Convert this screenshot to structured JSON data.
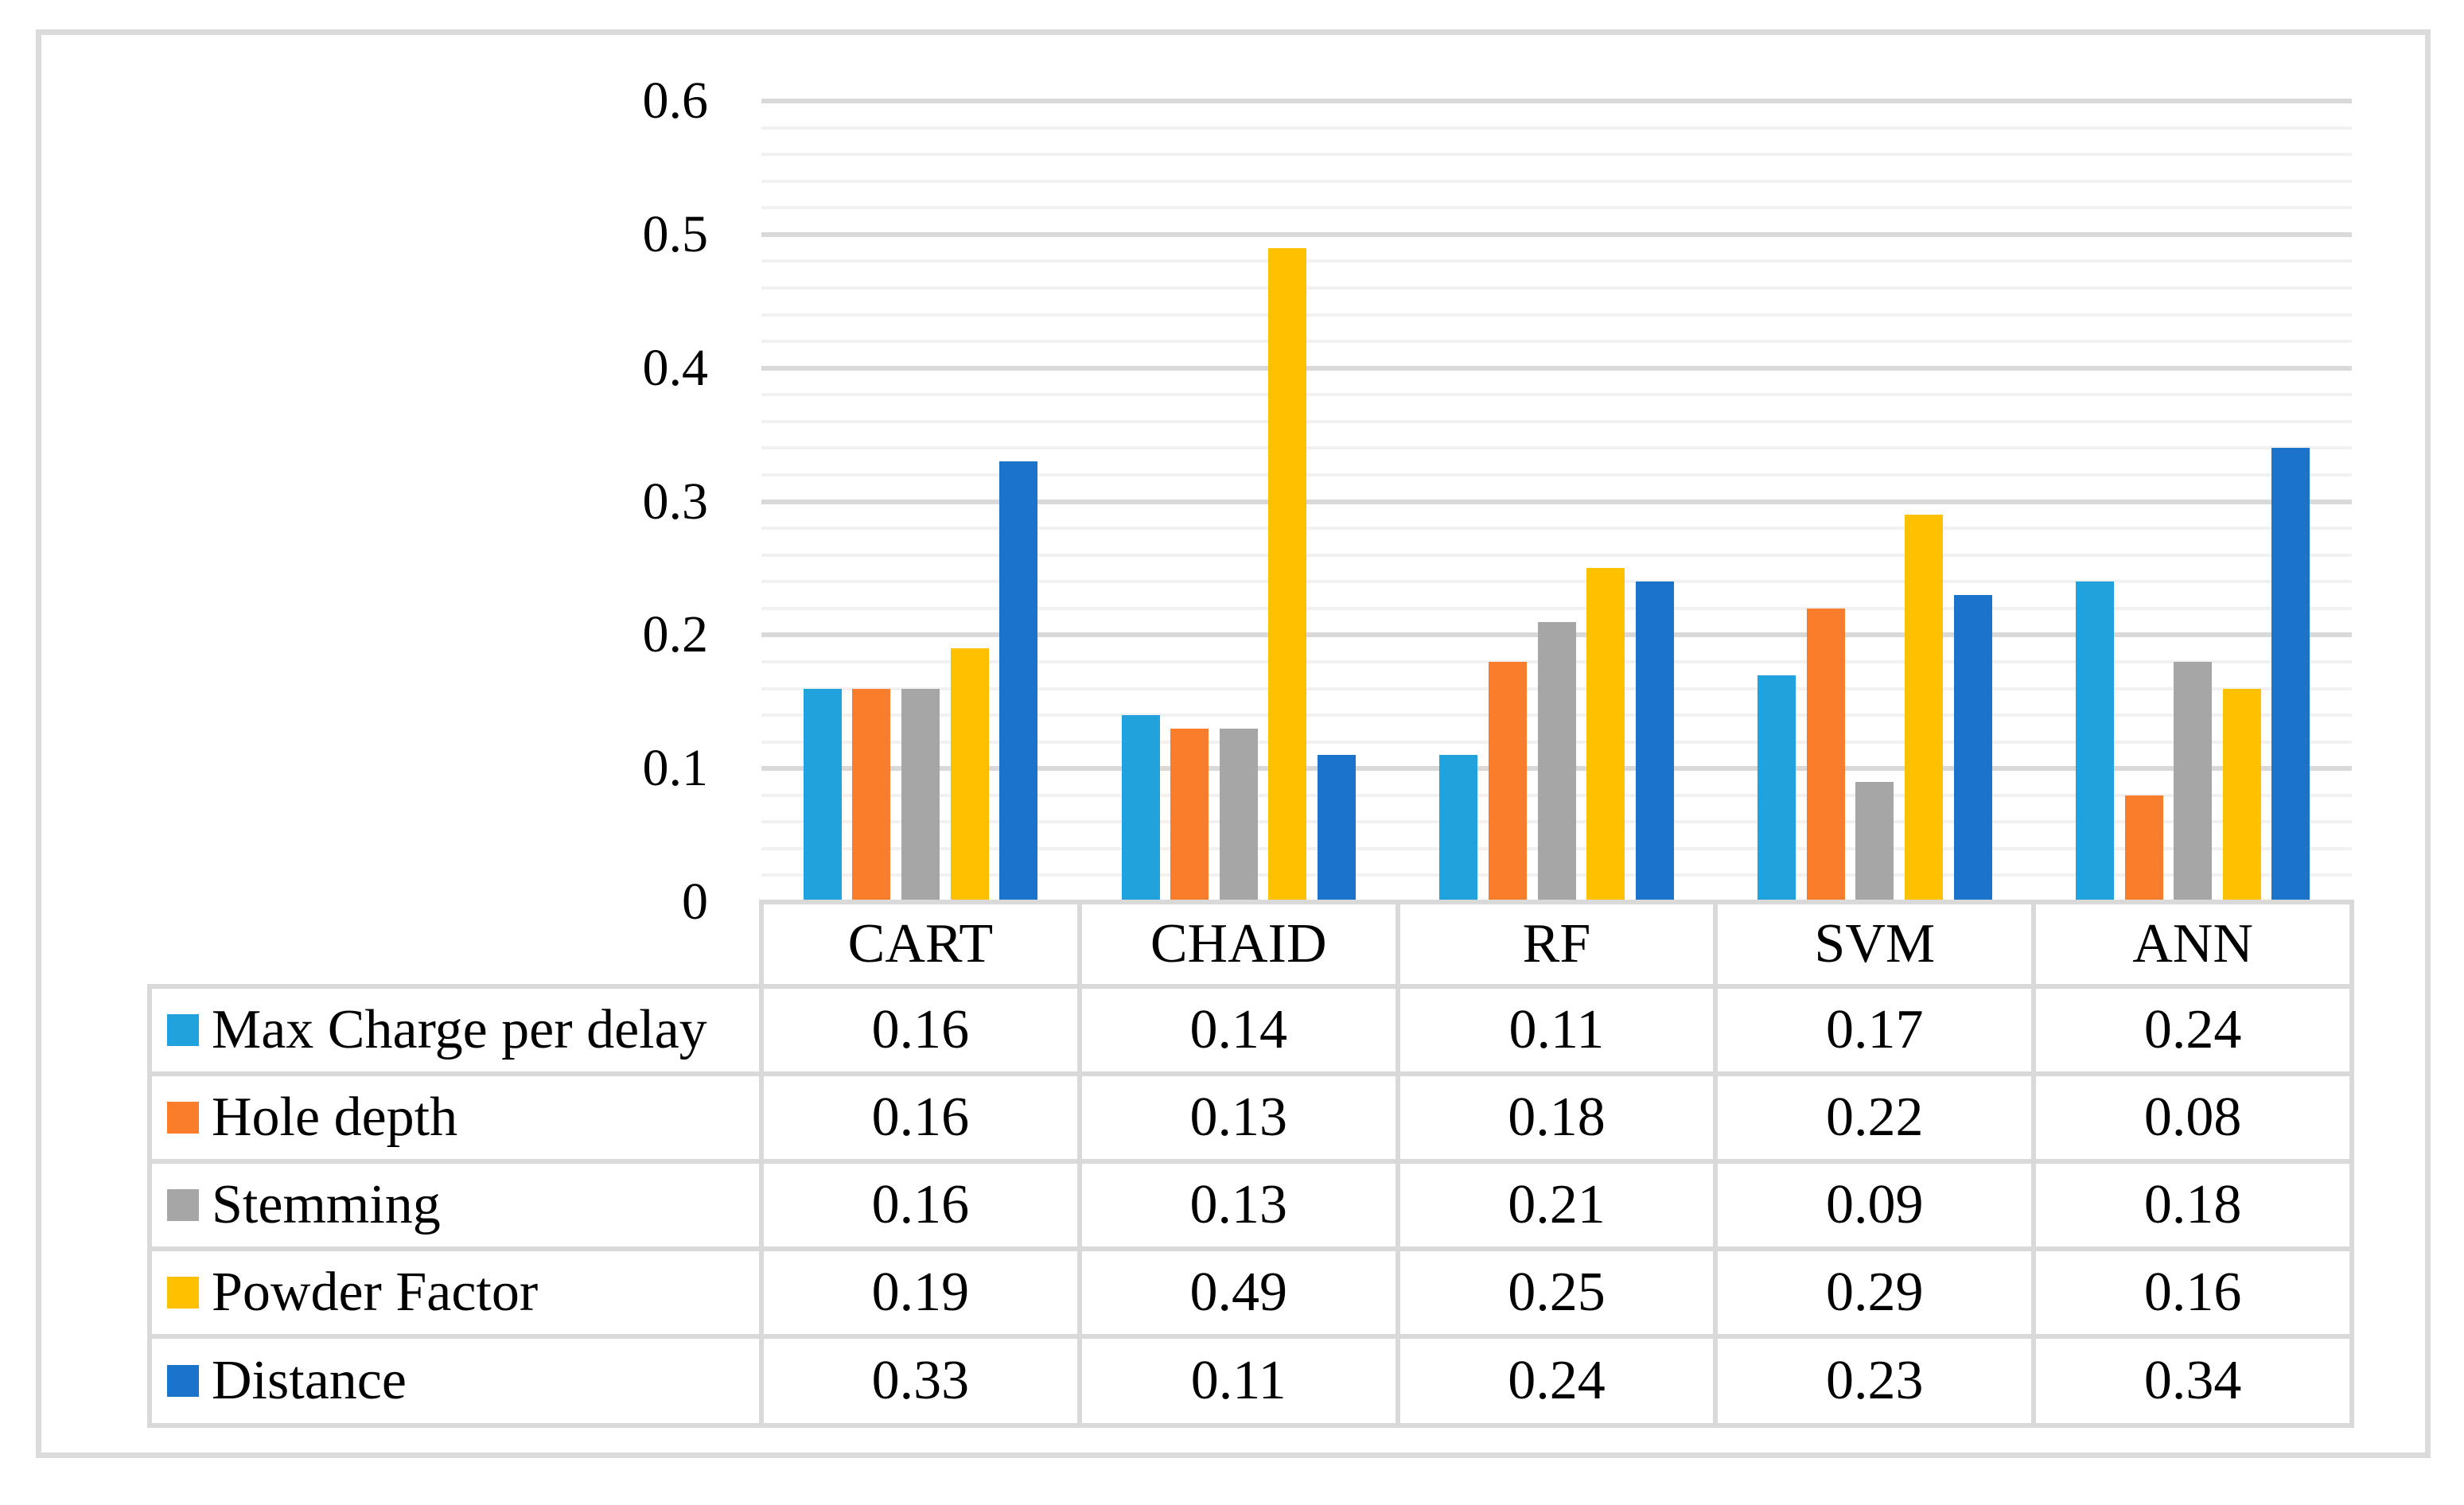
{
  "chart_data": {
    "type": "bar",
    "title": "",
    "xlabel": "",
    "ylabel": "",
    "categories": [
      "CART",
      "CHAID",
      "RF",
      "SVM",
      "ANN"
    ],
    "series": [
      {
        "name": "Max Charge per delay",
        "color": "#21A2DC",
        "values": [
          0.16,
          0.14,
          0.11,
          0.17,
          0.24
        ]
      },
      {
        "name": "Hole depth",
        "color": "#F97D2B",
        "values": [
          0.16,
          0.13,
          0.18,
          0.22,
          0.08
        ]
      },
      {
        "name": "Stemming",
        "color": "#A6A6A6",
        "values": [
          0.16,
          0.13,
          0.21,
          0.09,
          0.18
        ]
      },
      {
        "name": "Powder Factor",
        "color": "#FFC000",
        "values": [
          0.19,
          0.49,
          0.25,
          0.29,
          0.16
        ]
      },
      {
        "name": "Distance",
        "color": "#1C73CA",
        "values": [
          0.33,
          0.11,
          0.24,
          0.23,
          0.34
        ]
      }
    ],
    "y_axis": {
      "min": 0,
      "max": 0.6,
      "major_unit": 0.1,
      "minor_unit": 0.02,
      "tick_labels": [
        "0",
        "0.1",
        "0.2",
        "0.3",
        "0.4",
        "0.5",
        "0.6"
      ]
    },
    "grid": {
      "major": true,
      "minor": true
    },
    "legend_position": "table-left-column",
    "data_table_shown": true
  },
  "colors": {
    "frame_border": "#DBDBDB",
    "table_border": "#D9D9D9",
    "gridline_major": "#D9D9D9",
    "gridline_minor": "#F1F1F1",
    "background": "#FFFFFF",
    "text": "#000000"
  }
}
